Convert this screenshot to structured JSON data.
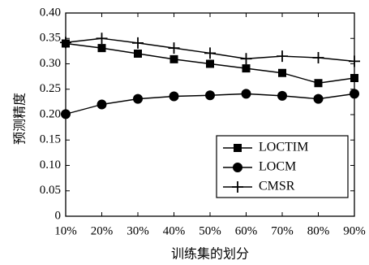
{
  "chart_data": {
    "type": "line",
    "title": "",
    "xlabel": "训练集的划分",
    "ylabel": "预测精度",
    "categories": [
      "10%",
      "20%",
      "30%",
      "40%",
      "50%",
      "60%",
      "70%",
      "80%",
      "90%"
    ],
    "yticks": [
      "0",
      "0.05",
      "0.10",
      "0.15",
      "0.20",
      "0.25",
      "0.30",
      "0.35",
      "0.40"
    ],
    "ylim": [
      0,
      0.4
    ],
    "grid": false,
    "legend_position": "bottom-right",
    "series": [
      {
        "name": "LOCTIM",
        "marker": "square",
        "values": [
          0.34,
          0.331,
          0.32,
          0.309,
          0.3,
          0.291,
          0.282,
          0.262,
          0.272
        ]
      },
      {
        "name": "LOCM",
        "marker": "circle",
        "values": [
          0.201,
          0.22,
          0.231,
          0.236,
          0.238,
          0.241,
          0.237,
          0.231,
          0.241
        ]
      },
      {
        "name": "CMSR",
        "marker": "plus",
        "values": [
          0.342,
          0.35,
          0.341,
          0.331,
          0.321,
          0.31,
          0.315,
          0.312,
          0.305
        ]
      }
    ]
  }
}
